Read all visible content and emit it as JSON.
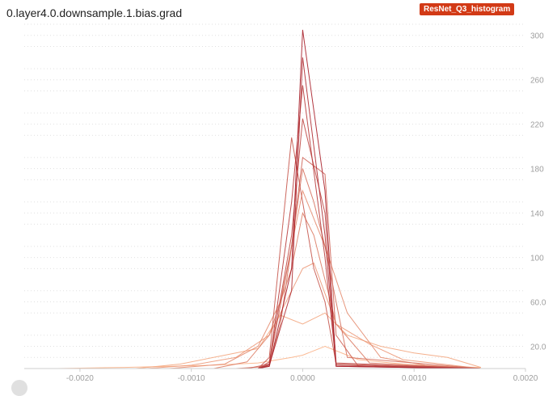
{
  "card": {
    "title": "0.layer4.0.downsample.1.bias.grad",
    "run_badge": "ResNet_Q3_histogram",
    "badge_color": "#d23a16"
  },
  "chart_data": {
    "type": "line",
    "title": "0.layer4.0.downsample.1.bias.grad",
    "xlabel": "",
    "ylabel": "",
    "xlim": [
      -0.0025,
      0.002
    ],
    "ylim": [
      0,
      310
    ],
    "xticks": [
      -0.002,
      -0.001,
      0.0,
      0.001,
      0.002
    ],
    "xtick_labels": [
      "-0.0020",
      "-0.0010",
      "0.0000",
      "0.0010",
      "0.0020"
    ],
    "yticks": [
      20,
      60,
      100,
      140,
      180,
      220,
      260,
      300
    ],
    "ytick_labels": [
      "20.0",
      "60.0",
      "100",
      "140",
      "180",
      "220",
      "260",
      "300"
    ],
    "grid": true,
    "color_light": "#fbb48a",
    "color_dark": "#a8202a",
    "series_note": "overlapping histogram steps, light (early) to dark (late)",
    "series": [
      {
        "x": [
          -0.0022,
          -0.0016,
          -0.0012,
          -0.0008,
          -0.0004,
          -0.0001,
          0.0,
          0.0002,
          0.0005,
          0.0009,
          0.0012,
          0.0016
        ],
        "y": [
          0,
          1,
          2,
          3,
          5,
          10,
          12,
          20,
          8,
          4,
          2,
          1
        ]
      },
      {
        "x": [
          -0.0022,
          -0.0015,
          -0.0011,
          -0.0007,
          -0.0004,
          -0.0002,
          0.0,
          0.0002,
          0.0004,
          0.0007,
          0.001,
          0.0013,
          0.0016
        ],
        "y": [
          0,
          0,
          4,
          12,
          18,
          48,
          40,
          50,
          30,
          20,
          14,
          10,
          1
        ]
      },
      {
        "x": [
          -0.0022,
          -0.0014,
          -0.001,
          -0.0006,
          -0.0003,
          -0.0001,
          0.0,
          0.0001,
          0.0003,
          0.0006,
          0.0009,
          0.0016
        ],
        "y": [
          0,
          0,
          3,
          10,
          30,
          70,
          90,
          95,
          40,
          22,
          8,
          0
        ]
      },
      {
        "x": [
          -0.0022,
          -0.0012,
          -0.0007,
          -0.0004,
          -0.0002,
          0.0,
          0.0002,
          0.0004,
          0.0007,
          0.0011,
          0.0016
        ],
        "y": [
          0,
          0,
          4,
          20,
          60,
          160,
          110,
          50,
          10,
          3,
          0
        ]
      },
      {
        "x": [
          -0.0022,
          -0.0008,
          -0.0005,
          -0.0003,
          -0.0001,
          0.0,
          0.0001,
          0.0003,
          0.0006,
          0.0016
        ],
        "y": [
          0,
          0,
          6,
          30,
          90,
          140,
          120,
          40,
          5,
          0
        ]
      },
      {
        "x": [
          -0.0022,
          -0.0006,
          -0.0003,
          -0.0002,
          0.0,
          0.0001,
          0.0002,
          0.0004,
          0.0016
        ],
        "y": [
          0,
          0,
          2,
          40,
          180,
          150,
          110,
          10,
          0
        ]
      },
      {
        "x": [
          -0.0022,
          -0.0005,
          -0.0003,
          -0.0001,
          0.0,
          0.0002,
          0.0003,
          0.0005,
          0.0016
        ],
        "y": [
          0,
          0,
          4,
          110,
          190,
          175,
          30,
          2,
          0
        ]
      },
      {
        "x": [
          -0.0022,
          -0.0004,
          -0.0003,
          -0.0001,
          0.0,
          0.0001,
          0.0002,
          0.0003,
          0.0016
        ],
        "y": [
          0,
          0,
          10,
          208,
          150,
          90,
          60,
          4,
          0
        ]
      },
      {
        "x": [
          -0.0022,
          -0.0004,
          -0.0003,
          -0.0001,
          0.0,
          0.0002,
          0.0003,
          0.0016
        ],
        "y": [
          0,
          0,
          6,
          120,
          225,
          140,
          5,
          0
        ]
      },
      {
        "x": [
          -0.0022,
          -0.0004,
          -0.0003,
          -0.0001,
          0.0,
          0.0002,
          0.0003,
          0.0016
        ],
        "y": [
          0,
          0,
          4,
          150,
          255,
          100,
          3,
          0
        ]
      },
      {
        "x": [
          -0.0022,
          -0.0004,
          -0.0003,
          -0.0001,
          0.0,
          0.0002,
          0.0003,
          0.0016
        ],
        "y": [
          0,
          0,
          3,
          70,
          280,
          120,
          2,
          0
        ]
      },
      {
        "x": [
          -0.0022,
          -0.0004,
          -0.0003,
          -0.0001,
          0.0,
          0.0002,
          0.0003,
          0.0016
        ],
        "y": [
          0,
          0,
          2,
          90,
          305,
          160,
          2,
          0
        ]
      }
    ]
  }
}
